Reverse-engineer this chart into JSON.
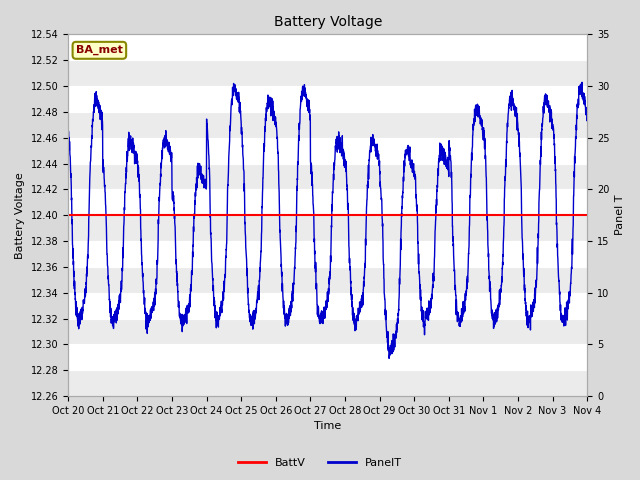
{
  "title": "Battery Voltage",
  "xlabel": "Time",
  "ylabel_left": "Battery Voltage",
  "ylabel_right": "Panel T",
  "xlim": [
    0,
    15
  ],
  "ylim_left": [
    12.26,
    12.54
  ],
  "ylim_right": [
    0,
    35
  ],
  "batt_v": 12.4,
  "annotation_label": "BA_met",
  "annotation_bg": "#ffffc8",
  "annotation_border": "#888800",
  "annotation_text_color": "#880000",
  "line_color_batt": "#ff0000",
  "line_color_panel": "#0000cc",
  "legend_labels": [
    "BattV",
    "PanelT"
  ],
  "tick_labels": [
    "Oct 20",
    "Oct 21",
    "Oct 22",
    "Oct 23",
    "Oct 24",
    "Oct 25",
    "Oct 26",
    "Oct 27",
    "Oct 28",
    "Oct 29",
    "Oct 30",
    "Oct 31",
    "Nov 1",
    "Nov 2",
    "Nov 3",
    "Nov 4"
  ],
  "bg_color": "#d9d9d9",
  "plot_bg_color": "#ebebeb",
  "grid_color": "#ffffff",
  "yticks_left": [
    12.26,
    12.28,
    12.3,
    12.32,
    12.34,
    12.36,
    12.38,
    12.4,
    12.42,
    12.44,
    12.46,
    12.48,
    12.5,
    12.52,
    12.54
  ],
  "yticks_right": [
    0,
    5,
    10,
    15,
    20,
    25,
    30,
    35
  ],
  "title_fontsize": 10,
  "axis_label_fontsize": 8,
  "tick_fontsize": 7,
  "legend_fontsize": 8
}
